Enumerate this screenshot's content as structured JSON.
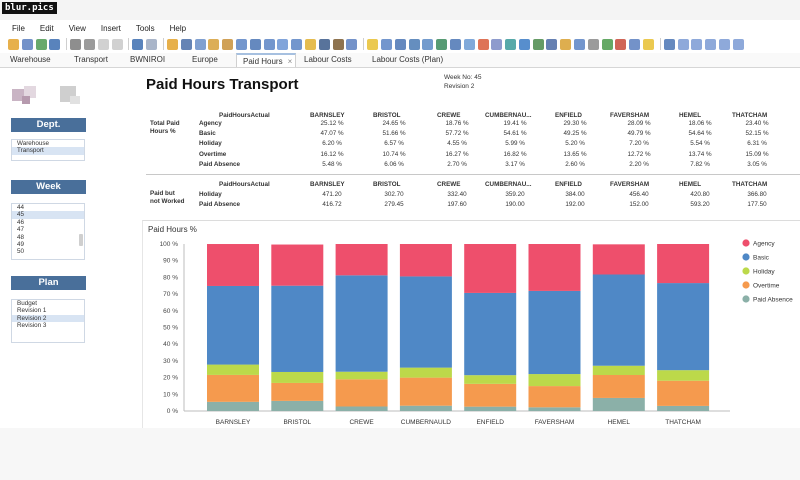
{
  "brand": "blur.pics",
  "menu": [
    "File",
    "Edit",
    "View",
    "Insert",
    "Tools",
    "Help"
  ],
  "toolbar_icons": [
    {
      "name": "open-folder-icon",
      "color": "#e3a22b"
    },
    {
      "name": "open-icon",
      "color": "#5a7fbf"
    },
    {
      "name": "refresh-icon",
      "color": "#4d9a52"
    },
    {
      "name": "save-icon",
      "color": "#3c6db0"
    },
    {
      "name": "print-icon",
      "color": "#7a7a7a"
    },
    {
      "name": "print-preview-icon",
      "color": "#8a8a8a"
    },
    {
      "name": "cut-icon",
      "color": "#c9c9c9"
    },
    {
      "name": "copy-icon",
      "color": "#c9c9c9"
    },
    {
      "name": "undo-icon",
      "color": "#3c6db0"
    },
    {
      "name": "redo-icon",
      "color": "#9aa8c0"
    },
    {
      "name": "back-icon",
      "color": "#e3a22b"
    },
    {
      "name": "filter-icon",
      "color": "#4a6fa8"
    },
    {
      "name": "filter-options-icon",
      "color": "#6a8fc8"
    },
    {
      "name": "sort-icon",
      "color": "#d6a03a"
    },
    {
      "name": "sort-options-icon",
      "color": "#c8913a"
    },
    {
      "name": "document-icon",
      "color": "#5a84c4"
    },
    {
      "name": "list-icon",
      "color": "#4a74b4"
    },
    {
      "name": "table-icon",
      "color": "#5a84c4"
    },
    {
      "name": "grid-icon",
      "color": "#6b94d4"
    },
    {
      "name": "rows-icon",
      "color": "#5a84c4"
    },
    {
      "name": "highlight-icon",
      "color": "#e0b030"
    },
    {
      "name": "shape-icon",
      "color": "#3b5a8a"
    },
    {
      "name": "color-icon",
      "color": "#7a5a30"
    },
    {
      "name": "more-icon",
      "color": "#5a7fbf"
    },
    {
      "name": "lightbulb-icon",
      "color": "#e8c030"
    },
    {
      "name": "table-chart-icon",
      "color": "#5a84c4"
    },
    {
      "name": "crosstab-icon",
      "color": "#4a74b4"
    },
    {
      "name": "bar-chart-icon",
      "color": "#4a7ab4"
    },
    {
      "name": "stacked-bar-icon",
      "color": "#5a8ac4"
    },
    {
      "name": "line-chart-icon",
      "color": "#3a8a5a"
    },
    {
      "name": "combo-chart-icon",
      "color": "#4a74b4"
    },
    {
      "name": "area-chart-icon",
      "color": "#6a9ad4"
    },
    {
      "name": "pie-chart-icon",
      "color": "#d85a3a"
    },
    {
      "name": "scatter-icon",
      "color": "#7a8ac4"
    },
    {
      "name": "map-chart-icon",
      "color": "#3a9a9a"
    },
    {
      "name": "globe-icon",
      "color": "#3a7ac4"
    },
    {
      "name": "tree-icon",
      "color": "#4a8a4a"
    },
    {
      "name": "heatmap-icon",
      "color": "#4a6aa4"
    },
    {
      "name": "gauge-icon",
      "color": "#d8a030"
    },
    {
      "name": "summary-icon",
      "color": "#5a84c4"
    },
    {
      "name": "text-icon",
      "color": "#8a8a8a"
    },
    {
      "name": "image-icon",
      "color": "#4a9a4a"
    },
    {
      "name": "insert-icon",
      "color": "#c84a3a"
    },
    {
      "name": "chart-wizard-icon",
      "color": "#5a7fbf"
    },
    {
      "name": "highlight-box-icon",
      "color": "#e8c030"
    },
    {
      "name": "options-icon",
      "color": "#4a74b4"
    },
    {
      "name": "layout-1-icon",
      "color": "#7a9ad4"
    },
    {
      "name": "layout-2-icon",
      "color": "#7a9ad4"
    },
    {
      "name": "layout-3-icon",
      "color": "#7a9ad4"
    },
    {
      "name": "layout-4-icon",
      "color": "#7a9ad4"
    },
    {
      "name": "layout-5-icon",
      "color": "#7a9ad4"
    }
  ],
  "tabs": [
    {
      "label": "Warehouse"
    },
    {
      "label": "Transport"
    },
    {
      "label": "BWNIROI"
    },
    {
      "label": "Europe"
    },
    {
      "label": "Paid Hours",
      "active": true
    },
    {
      "label": "Labour Costs"
    },
    {
      "label": "Labour Costs (Plan)"
    }
  ],
  "sidebar": {
    "dept": {
      "heading": "Dept.",
      "items": [
        {
          "label": "Warehouse",
          "selected": false
        },
        {
          "label": "Transport",
          "selected": true
        }
      ]
    },
    "week": {
      "heading": "Week",
      "items": [
        {
          "label": "44",
          "selected": false
        },
        {
          "label": "45",
          "selected": true
        },
        {
          "label": "46",
          "selected": false
        },
        {
          "label": "47",
          "selected": false
        },
        {
          "label": "48",
          "selected": false
        },
        {
          "label": "49",
          "selected": false
        },
        {
          "label": "50",
          "selected": false
        }
      ]
    },
    "plan": {
      "heading": "Plan",
      "items": [
        {
          "label": "Budget",
          "selected": false
        },
        {
          "label": "Revision 1",
          "selected": false
        },
        {
          "label": "Revision 2",
          "selected": true
        },
        {
          "label": "Revision 3",
          "selected": false
        }
      ]
    }
  },
  "report": {
    "title": "Paid Hours Transport",
    "week_no": "Week No: 45",
    "revision": "Revision 2"
  },
  "table1": {
    "group_label": "Total Paid\nHours %",
    "measure_header": "PaidHoursActual",
    "columns": [
      "BARNSLEY",
      "BRISTOL",
      "CREWE",
      "CUMBERNAU...",
      "ENFIELD",
      "FAVERSHAM",
      "HEMEL",
      "THATCHAM"
    ],
    "rows": [
      {
        "label": "Agency",
        "values": [
          "25.12 %",
          "24.65 %",
          "18.76 %",
          "19.41 %",
          "29.30 %",
          "28.09 %",
          "18.06 %",
          "23.40 %"
        ]
      },
      {
        "label": "Basic",
        "values": [
          "47.07 %",
          "51.66 %",
          "57.72 %",
          "54.61 %",
          "49.25 %",
          "49.79 %",
          "54.64 %",
          "52.15 %"
        ]
      },
      {
        "label": "Holiday",
        "values": [
          "6.20 %",
          "6.57 %",
          "4.55 %",
          "5.99 %",
          "5.20 %",
          "7.20 %",
          "5.54 %",
          "6.31 %"
        ]
      },
      {
        "label": "Overtime",
        "values": [
          "16.12 %",
          "10.74 %",
          "16.27 %",
          "16.82 %",
          "13.65 %",
          "12.72 %",
          "13.74 %",
          "15.09 %"
        ]
      },
      {
        "label": "Paid Absence",
        "values": [
          "5.48 %",
          "6.06 %",
          "2.70 %",
          "3.17 %",
          "2.60 %",
          "2.20 %",
          "7.82 %",
          "3.05 %"
        ]
      }
    ]
  },
  "table2": {
    "group_label": "Paid but\nnot Worked",
    "measure_header": "PaidHoursActual",
    "columns": [
      "BARNSLEY",
      "BRISTOL",
      "CREWE",
      "CUMBERNAU...",
      "ENFIELD",
      "FAVERSHAM",
      "HEMEL",
      "THATCHAM"
    ],
    "rows": [
      {
        "label": "Holiday",
        "values": [
          "471.20",
          "302.70",
          "332.40",
          "359.20",
          "384.00",
          "456.40",
          "420.80",
          "366.80"
        ]
      },
      {
        "label": "Paid Absence",
        "values": [
          "416.72",
          "279.45",
          "197.60",
          "190.00",
          "192.00",
          "152.00",
          "593.20",
          "177.50"
        ]
      }
    ]
  },
  "chart_data": {
    "type": "bar",
    "stacked": true,
    "title": "Paid Hours %",
    "categories": [
      "BARNSLEY",
      "BRISTOL",
      "CREWE",
      "CUMBERNAULD",
      "ENFIELD",
      "FAVERSHAM",
      "HEMEL",
      "THATCHAM"
    ],
    "series": [
      {
        "name": "Paid Absence",
        "color": "#8bb0a8",
        "values": [
          5.48,
          6.06,
          2.7,
          3.17,
          2.6,
          2.2,
          7.82,
          3.05
        ]
      },
      {
        "name": "Overtime",
        "color": "#f59a4e",
        "values": [
          16.12,
          10.74,
          16.27,
          16.82,
          13.65,
          12.72,
          13.74,
          15.09
        ]
      },
      {
        "name": "Holiday",
        "color": "#bcd94a",
        "values": [
          6.2,
          6.57,
          4.55,
          5.99,
          5.2,
          7.2,
          5.54,
          6.31
        ]
      },
      {
        "name": "Basic",
        "color": "#4f88c6",
        "values": [
          47.07,
          51.66,
          57.72,
          54.61,
          49.25,
          49.79,
          54.64,
          52.15
        ]
      },
      {
        "name": "Agency",
        "color": "#ee4f6c",
        "values": [
          25.12,
          24.65,
          18.76,
          19.41,
          29.3,
          28.09,
          18.06,
          23.4
        ]
      }
    ],
    "legend_order": [
      "Agency",
      "Basic",
      "Holiday",
      "Overtime",
      "Paid Absence"
    ],
    "yticks": [
      "0 %",
      "10 %",
      "20 %",
      "30 %",
      "40 %",
      "50 %",
      "60 %",
      "70 %",
      "80 %",
      "90 %",
      "100 %"
    ],
    "ylim": [
      0,
      100
    ],
    "grid": false,
    "legend_position": "right"
  }
}
